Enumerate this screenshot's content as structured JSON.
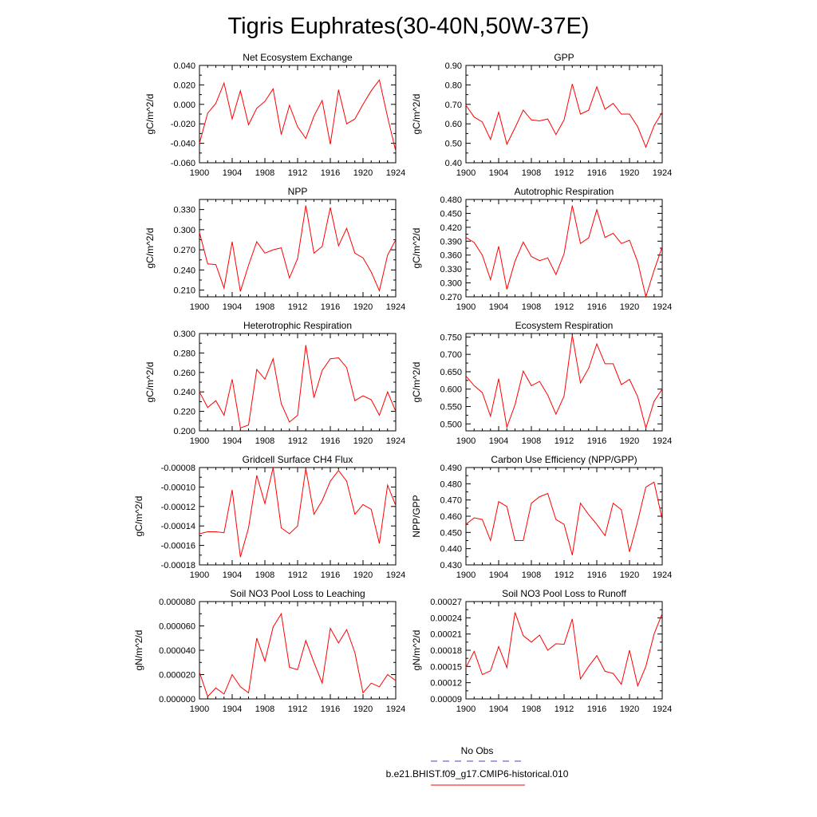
{
  "title": "Tigris Euphrates(30-40N,50W-37E)",
  "legend": {
    "items": [
      {
        "label": "No Obs",
        "color": "#6b6bd6",
        "style": "dashed"
      },
      {
        "label": "b.e21.BHIST.f09_g17.CMIP6-historical.010",
        "color": "#ff0000",
        "style": "solid"
      }
    ]
  },
  "chart_data": [
    {
      "type": "line",
      "title": "Net Ecosystem Exchange",
      "ylabel": "gC/m^2/d",
      "ylim": [
        -0.06,
        0.04
      ],
      "yticks": [
        "0.040",
        "0.020",
        "0.000",
        "-0.020",
        "-0.040",
        "-0.060"
      ],
      "xlim": [
        1900,
        1924
      ],
      "xticks": [
        "1900",
        "1904",
        "1908",
        "1912",
        "1916",
        "1920",
        "1924"
      ],
      "x": [
        1900,
        1901,
        1902,
        1903,
        1904,
        1905,
        1906,
        1907,
        1908,
        1909,
        1910,
        1911,
        1912,
        1913,
        1914,
        1915,
        1916,
        1917,
        1918,
        1919,
        1920,
        1921,
        1922,
        1923,
        1924
      ],
      "series": [
        {
          "color": "#ff0000",
          "values": [
            -0.04,
            -0.009,
            0.001,
            0.022,
            -0.015,
            0.014,
            -0.021,
            -0.004,
            0.003,
            0.016,
            -0.031,
            -0.001,
            -0.023,
            -0.035,
            -0.012,
            0.004,
            -0.041,
            0.015,
            -0.02,
            -0.015,
            0.0,
            0.014,
            0.025,
            -0.013,
            -0.048
          ]
        }
      ]
    },
    {
      "type": "line",
      "title": "GPP",
      "ylabel": "gC/m^2/d",
      "ylim": [
        0.4,
        0.9
      ],
      "yticks": [
        "0.90",
        "0.80",
        "0.70",
        "0.60",
        "0.50",
        "0.40"
      ],
      "xlim": [
        1900,
        1924
      ],
      "xticks": [
        "1900",
        "1904",
        "1908",
        "1912",
        "1916",
        "1920",
        "1924"
      ],
      "x": [
        1900,
        1901,
        1902,
        1903,
        1904,
        1905,
        1906,
        1907,
        1908,
        1909,
        1910,
        1911,
        1912,
        1913,
        1914,
        1915,
        1916,
        1917,
        1918,
        1919,
        1920,
        1921,
        1922,
        1923,
        1924
      ],
      "series": [
        {
          "color": "#ff0000",
          "values": [
            0.695,
            0.635,
            0.61,
            0.52,
            0.66,
            0.495,
            0.58,
            0.67,
            0.62,
            0.615,
            0.625,
            0.545,
            0.62,
            0.805,
            0.65,
            0.67,
            0.79,
            0.675,
            0.705,
            0.65,
            0.65,
            0.585,
            0.48,
            0.59,
            0.66
          ]
        }
      ]
    },
    {
      "type": "line",
      "title": "NPP",
      "ylabel": "gC/m^2/d",
      "ylim": [
        0.2,
        0.345
      ],
      "yticks": [
        "0.330",
        "0.300",
        "0.270",
        "0.240",
        "0.210"
      ],
      "xlim": [
        1900,
        1924
      ],
      "xticks": [
        "1900",
        "1904",
        "1908",
        "1912",
        "1916",
        "1920",
        "1924"
      ],
      "x": [
        1900,
        1901,
        1902,
        1903,
        1904,
        1905,
        1906,
        1907,
        1908,
        1909,
        1910,
        1911,
        1912,
        1913,
        1914,
        1915,
        1916,
        1917,
        1918,
        1919,
        1920,
        1921,
        1922,
        1923,
        1924
      ],
      "series": [
        {
          "color": "#ff0000",
          "values": [
            0.296,
            0.249,
            0.248,
            0.213,
            0.282,
            0.208,
            0.247,
            0.282,
            0.265,
            0.27,
            0.273,
            0.228,
            0.257,
            0.336,
            0.265,
            0.275,
            0.333,
            0.276,
            0.302,
            0.265,
            0.258,
            0.237,
            0.209,
            0.262,
            0.285
          ]
        }
      ]
    },
    {
      "type": "line",
      "title": "Autotrophic Respiration",
      "ylabel": "gC/m^2/d",
      "ylim": [
        0.27,
        0.48
      ],
      "yticks": [
        "0.480",
        "0.450",
        "0.420",
        "0.390",
        "0.360",
        "0.330",
        "0.300",
        "0.270"
      ],
      "xlim": [
        1900,
        1924
      ],
      "xticks": [
        "1900",
        "1904",
        "1908",
        "1912",
        "1916",
        "1920",
        "1924"
      ],
      "x": [
        1900,
        1901,
        1902,
        1903,
        1904,
        1905,
        1906,
        1907,
        1908,
        1909,
        1910,
        1911,
        1912,
        1913,
        1914,
        1915,
        1916,
        1917,
        1918,
        1919,
        1920,
        1921,
        1922,
        1923,
        1924
      ],
      "series": [
        {
          "color": "#ff0000",
          "values": [
            0.398,
            0.387,
            0.36,
            0.307,
            0.379,
            0.286,
            0.347,
            0.388,
            0.357,
            0.348,
            0.354,
            0.318,
            0.363,
            0.467,
            0.385,
            0.397,
            0.458,
            0.398,
            0.407,
            0.385,
            0.392,
            0.345,
            0.27,
            0.327,
            0.378
          ]
        }
      ]
    },
    {
      "type": "line",
      "title": "Heterotrophic Respiration",
      "ylabel": "gC/m^2/d",
      "ylim": [
        0.2,
        0.3
      ],
      "yticks": [
        "0.300",
        "0.280",
        "0.260",
        "0.240",
        "0.220",
        "0.200"
      ],
      "xlim": [
        1900,
        1924
      ],
      "xticks": [
        "1900",
        "1904",
        "1908",
        "1912",
        "1916",
        "1920",
        "1924"
      ],
      "x": [
        1900,
        1901,
        1902,
        1903,
        1904,
        1905,
        1906,
        1907,
        1908,
        1909,
        1910,
        1911,
        1912,
        1913,
        1914,
        1915,
        1916,
        1917,
        1918,
        1919,
        1920,
        1921,
        1922,
        1923,
        1924
      ],
      "series": [
        {
          "color": "#ff0000",
          "values": [
            0.24,
            0.224,
            0.231,
            0.216,
            0.253,
            0.203,
            0.206,
            0.263,
            0.253,
            0.274,
            0.228,
            0.209,
            0.216,
            0.288,
            0.234,
            0.262,
            0.274,
            0.275,
            0.265,
            0.231,
            0.236,
            0.232,
            0.216,
            0.24,
            0.22
          ]
        }
      ]
    },
    {
      "type": "line",
      "title": "Ecosystem Respiration",
      "ylabel": "gC/m^2/d",
      "ylim": [
        0.48,
        0.76
      ],
      "yticks": [
        "0.750",
        "0.700",
        "0.650",
        "0.600",
        "0.550",
        "0.500"
      ],
      "xlim": [
        1900,
        1924
      ],
      "xticks": [
        "1900",
        "1904",
        "1908",
        "1912",
        "1916",
        "1920",
        "1924"
      ],
      "x": [
        1900,
        1901,
        1902,
        1903,
        1904,
        1905,
        1906,
        1907,
        1908,
        1909,
        1910,
        1911,
        1912,
        1913,
        1914,
        1915,
        1916,
        1917,
        1918,
        1919,
        1920,
        1921,
        1922,
        1923,
        1924
      ],
      "series": [
        {
          "color": "#ff0000",
          "values": [
            0.638,
            0.61,
            0.59,
            0.522,
            0.63,
            0.49,
            0.555,
            0.652,
            0.61,
            0.622,
            0.583,
            0.528,
            0.58,
            0.755,
            0.618,
            0.66,
            0.73,
            0.673,
            0.673,
            0.613,
            0.628,
            0.578,
            0.488,
            0.565,
            0.6
          ]
        }
      ]
    },
    {
      "type": "line",
      "title": "Gridcell Surface CH4 Flux",
      "ylabel": "gC/m^2/d",
      "ylim": [
        -0.00018,
        -8e-05
      ],
      "yticks": [
        "-0.00008",
        "-0.00010",
        "-0.00012",
        "-0.00014",
        "-0.00016",
        "-0.00018"
      ],
      "xlim": [
        1900,
        1924
      ],
      "xticks": [
        "1900",
        "1904",
        "1908",
        "1912",
        "1916",
        "1920",
        "1924"
      ],
      "x": [
        1900,
        1901,
        1902,
        1903,
        1904,
        1905,
        1906,
        1907,
        1908,
        1909,
        1910,
        1911,
        1912,
        1913,
        1914,
        1915,
        1916,
        1917,
        1918,
        1919,
        1920,
        1921,
        1922,
        1923,
        1924
      ],
      "series": [
        {
          "color": "#ff0000",
          "values": [
            -0.000148,
            -0.000146,
            -0.000146,
            -0.000147,
            -0.000103,
            -0.000172,
            -0.000142,
            -8.8e-05,
            -0.000117,
            -8e-05,
            -0.000142,
            -0.000148,
            -0.00014,
            -8.1e-05,
            -0.000128,
            -0.000114,
            -9.4e-05,
            -8.3e-05,
            -9.4e-05,
            -0.000128,
            -0.000118,
            -0.000123,
            -0.000158,
            -9.8e-05,
            -0.000119
          ]
        }
      ]
    },
    {
      "type": "line",
      "title": "Carbon Use Efficiency (NPP/GPP)",
      "ylabel": "NPP/GPP",
      "ylim": [
        0.43,
        0.49
      ],
      "yticks": [
        "0.490",
        "0.480",
        "0.470",
        "0.460",
        "0.450",
        "0.440",
        "0.430"
      ],
      "xlim": [
        1900,
        1924
      ],
      "xticks": [
        "1900",
        "1904",
        "1908",
        "1912",
        "1916",
        "1920",
        "1924"
      ],
      "x": [
        1900,
        1901,
        1902,
        1903,
        1904,
        1905,
        1906,
        1907,
        1908,
        1909,
        1910,
        1911,
        1912,
        1913,
        1914,
        1915,
        1916,
        1917,
        1918,
        1919,
        1920,
        1921,
        1922,
        1923,
        1924
      ],
      "series": [
        {
          "color": "#ff0000",
          "values": [
            0.455,
            0.459,
            0.458,
            0.445,
            0.469,
            0.466,
            0.445,
            0.445,
            0.468,
            0.472,
            0.474,
            0.458,
            0.455,
            0.436,
            0.468,
            0.461,
            0.455,
            0.448,
            0.468,
            0.464,
            0.438,
            0.457,
            0.478,
            0.481,
            0.458
          ]
        }
      ]
    },
    {
      "type": "line",
      "title": "Soil NO3 Pool Loss to Leaching",
      "ylabel": "gN/m^2/d",
      "ylim": [
        0.0,
        8e-05
      ],
      "yticks": [
        "0.000080",
        "0.000060",
        "0.000040",
        "0.000020",
        "0.000000"
      ],
      "xlim": [
        1900,
        1924
      ],
      "xticks": [
        "1900",
        "1904",
        "1908",
        "1912",
        "1916",
        "1920",
        "1924"
      ],
      "x": [
        1900,
        1901,
        1902,
        1903,
        1904,
        1905,
        1906,
        1907,
        1908,
        1909,
        1910,
        1911,
        1912,
        1913,
        1914,
        1915,
        1916,
        1917,
        1918,
        1919,
        1920,
        1921,
        1922,
        1923,
        1924
      ],
      "series": [
        {
          "color": "#ff0000",
          "values": [
            2.2e-05,
            2e-06,
            9e-06,
            4e-06,
            2e-05,
            1e-05,
            5e-06,
            5e-05,
            3.1e-05,
            5.9e-05,
            7e-05,
            2.6e-05,
            2.4e-05,
            4.8e-05,
            3e-05,
            1.3e-05,
            5.8e-05,
            4.6e-05,
            5.7e-05,
            3.8e-05,
            5e-06,
            1.3e-05,
            1e-05,
            2e-05,
            1.5e-05
          ]
        }
      ]
    },
    {
      "type": "line",
      "title": "Soil NO3 Pool Loss to Runoff",
      "ylabel": "gN/m^2/d",
      "ylim": [
        9e-05,
        0.00027
      ],
      "yticks": [
        "0.00027",
        "0.00024",
        "0.00021",
        "0.00018",
        "0.00015",
        "0.00012",
        "0.00009"
      ],
      "xlim": [
        1900,
        1924
      ],
      "xticks": [
        "1900",
        "1904",
        "1908",
        "1912",
        "1916",
        "1920",
        "1924"
      ],
      "x": [
        1900,
        1901,
        1902,
        1903,
        1904,
        1905,
        1906,
        1907,
        1908,
        1909,
        1910,
        1911,
        1912,
        1913,
        1914,
        1915,
        1916,
        1917,
        1918,
        1919,
        1920,
        1921,
        1922,
        1923,
        1924
      ],
      "series": [
        {
          "color": "#ff0000",
          "values": [
            0.000148,
            0.000178,
            0.000135,
            0.000142,
            0.000187,
            0.000148,
            0.00025,
            0.000207,
            0.000195,
            0.000208,
            0.00018,
            0.000192,
            0.000191,
            0.000238,
            0.000127,
            0.00015,
            0.00017,
            0.000141,
            0.000137,
            0.000117,
            0.00018,
            0.000114,
            0.00015,
            0.00021,
            0.000248
          ]
        }
      ]
    }
  ]
}
